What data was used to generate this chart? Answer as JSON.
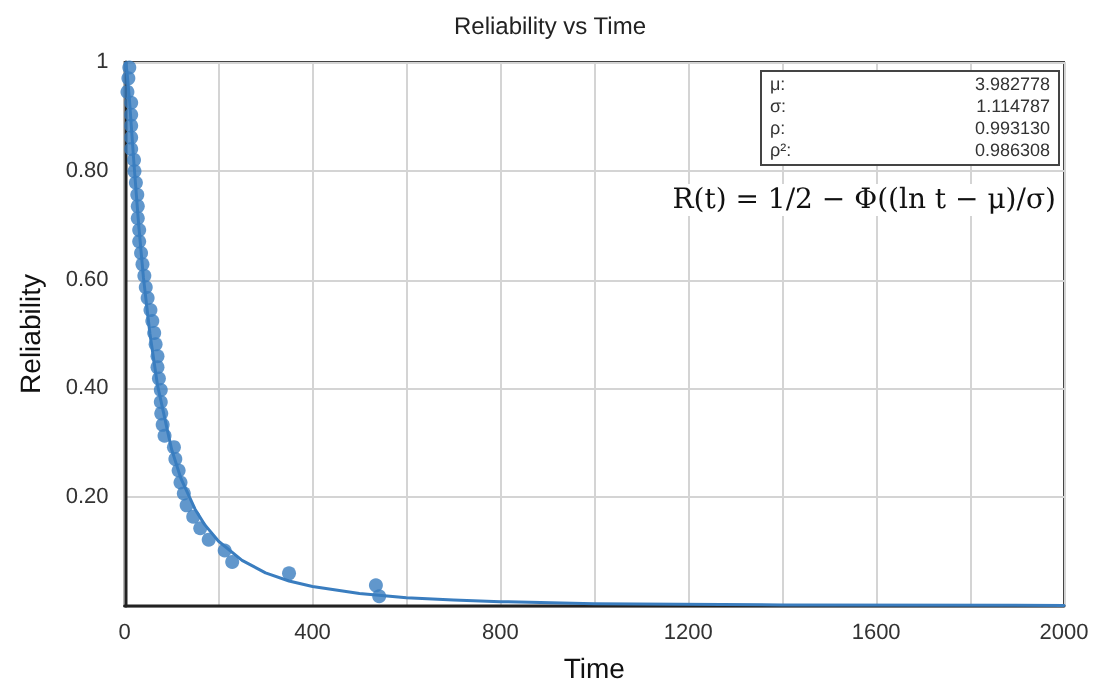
{
  "chart_data": {
    "type": "scatter",
    "title": "Reliability vs Time",
    "xlabel": "Time",
    "ylabel": "Reliability",
    "annotations": [
      "μ: 3.982778",
      "σ: 1.114787",
      "ρ: 0.993130",
      "ρ²: 0.986308",
      "R(t) = 1/2 − Φ((ln t − μ)/σ)"
    ],
    "xlim": [
      0,
      2000
    ],
    "xticks": [
      0,
      {
        "value": 200,
        "label": null
      },
      400,
      {
        "value": 600,
        "label": null
      },
      800,
      {
        "value": 1000,
        "label": null
      },
      1200,
      {
        "value": 1400,
        "label": null
      },
      1600,
      {
        "value": 1800,
        "label": null
      },
      2000
    ],
    "ylim": [
      0,
      1
    ],
    "yticks": [
      {
        "value": 0,
        "label": null
      },
      {
        "value": 0.2,
        "label": "0.20"
      },
      {
        "value": 0.4,
        "label": "0.40"
      },
      {
        "value": 0.6,
        "label": "0.60"
      },
      {
        "value": 0.8,
        "label": "0.80"
      },
      1
    ],
    "grid": true,
    "marker": "circle",
    "series": [
      {
        "color": "#3a7dbf",
        "x": [
          10,
          8,
          6,
          14,
          14,
          14,
          14,
          14,
          20,
          21,
          24,
          27,
          28,
          28,
          31,
          31,
          35,
          38,
          42,
          45,
          49,
          55,
          59,
          63,
          66,
          70,
          70,
          73,
          77,
          77,
          78,
          81,
          85,
          105,
          108,
          115,
          119,
          126,
          132,
          146,
          161,
          179,
          213,
          229,
          350,
          535,
          542
        ],
        "values": [
          0.99,
          0.97,
          0.945,
          0.925,
          0.903,
          0.883,
          0.861,
          0.84,
          0.82,
          0.799,
          0.778,
          0.756,
          0.735,
          0.713,
          0.691,
          0.67,
          0.649,
          0.628,
          0.607,
          0.586,
          0.566,
          0.544,
          0.524,
          0.502,
          0.481,
          0.459,
          0.439,
          0.418,
          0.397,
          0.375,
          0.354,
          0.333,
          0.313,
          0.292,
          0.27,
          0.249,
          0.227,
          0.207,
          0.185,
          0.164,
          0.143,
          0.122,
          0.102,
          0.081,
          0.06,
          0.038,
          0.018
        ]
      },
      {
        "type": "line",
        "color": "#3a7dbf",
        "marker": "none",
        "line_style": "solid",
        "x": [
          2,
          5,
          10,
          20,
          30,
          40,
          54,
          70,
          100,
          120,
          150,
          170,
          200,
          250,
          300,
          350,
          400,
          500,
          600,
          700,
          800,
          1000,
          1400,
          2000
        ],
        "values": [
          0.998,
          0.983,
          0.934,
          0.812,
          0.7,
          0.604,
          0.5,
          0.406,
          0.288,
          0.234,
          0.178,
          0.15,
          0.119,
          0.084,
          0.061,
          0.046,
          0.036,
          0.023,
          0.015,
          0.011,
          0.008,
          0.004,
          0.002,
          0.001
        ]
      }
    ]
  }
}
